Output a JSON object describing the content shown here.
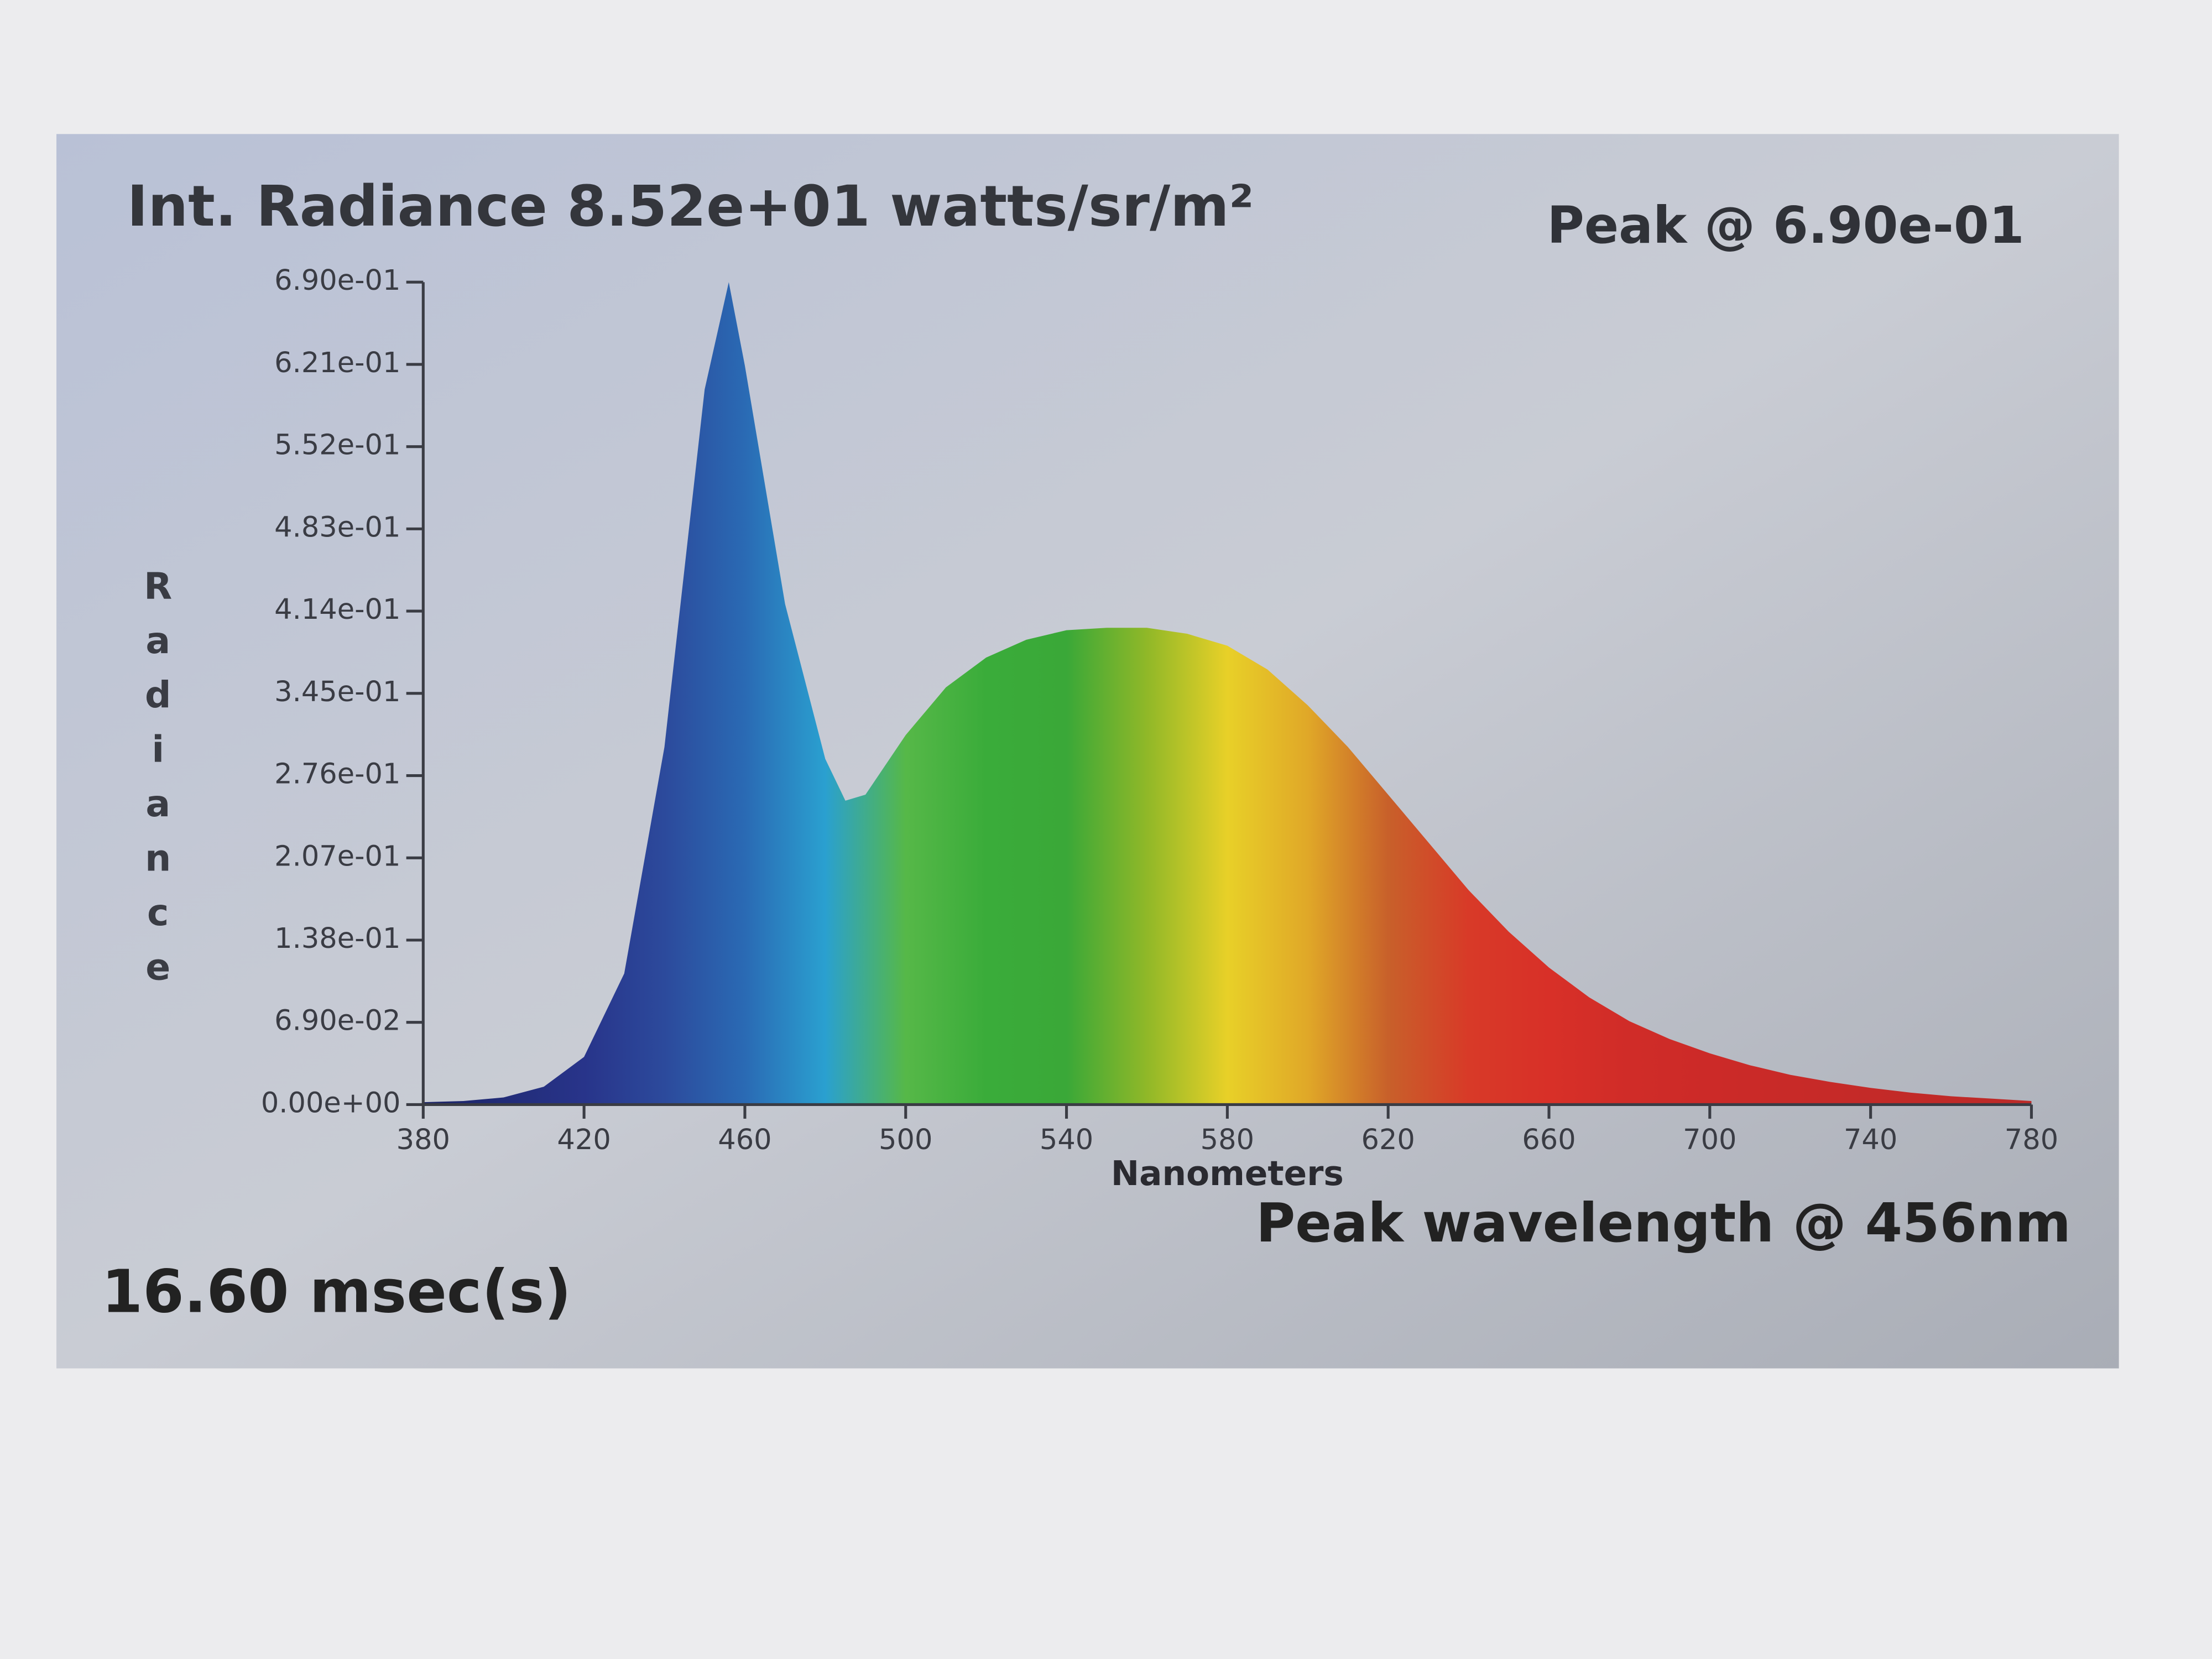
{
  "chart_data": {
    "type": "area",
    "title": "Int. Radiance 8.52e+01 watts/sr/m²",
    "annotations": [
      "Peak @ 6.90e-01",
      "Peak wavelength @ 456nm",
      "16.60 msec(s)"
    ],
    "x_label": "Nanometers",
    "y_label": "Radiance",
    "x": [
      380,
      390,
      400,
      410,
      420,
      430,
      440,
      450,
      456,
      460,
      470,
      480,
      485,
      490,
      500,
      510,
      520,
      530,
      540,
      550,
      560,
      570,
      580,
      590,
      600,
      610,
      620,
      630,
      640,
      650,
      660,
      670,
      680,
      690,
      700,
      710,
      720,
      730,
      740,
      750,
      760,
      770,
      780
    ],
    "values": [
      0.002,
      0.003,
      0.006,
      0.015,
      0.04,
      0.11,
      0.3,
      0.6,
      0.69,
      0.62,
      0.42,
      0.29,
      0.255,
      0.26,
      0.31,
      0.35,
      0.375,
      0.39,
      0.398,
      0.4,
      0.4,
      0.395,
      0.385,
      0.365,
      0.335,
      0.3,
      0.26,
      0.22,
      0.18,
      0.145,
      0.115,
      0.09,
      0.07,
      0.055,
      0.043,
      0.033,
      0.025,
      0.019,
      0.014,
      0.01,
      0.007,
      0.005,
      0.003
    ],
    "colors": [
      "#1c2466",
      "#222c78",
      "#28348a",
      "#2c4a9c",
      "#2a6ab4",
      "#2aa0d0",
      "#56b848",
      "#3aac3a",
      "#3aa838",
      "#90b828",
      "#e8d028",
      "#e0a828",
      "#c8602a",
      "#d83a28",
      "#d83028",
      "#d02c28",
      "#cc2a28",
      "#c82a28",
      "#c42a28",
      "#c02a28",
      "#bc2a28"
    ],
    "xlim": [
      380,
      780
    ],
    "xticks": [
      380,
      420,
      460,
      500,
      540,
      580,
      620,
      660,
      700,
      740,
      780
    ],
    "ylim": [
      0,
      0.69
    ],
    "yticks": [
      {
        "value": 0,
        "label": "0.00e+00"
      },
      {
        "value": 0.069,
        "label": "6.90e-02"
      },
      {
        "value": 0.138,
        "label": "1.38e-01"
      },
      {
        "value": 0.207,
        "label": "2.07e-01"
      },
      {
        "value": 0.276,
        "label": "2.76e-01"
      },
      {
        "value": 0.345,
        "label": "3.45e-01"
      },
      {
        "value": 0.414,
        "label": "4.14e-01"
      },
      {
        "value": 0.483,
        "label": "4.83e-01"
      },
      {
        "value": 0.552,
        "label": "5.52e-01"
      },
      {
        "value": 0.621,
        "label": "6.21e-01"
      },
      {
        "value": 0.69,
        "label": "6.90e-01"
      }
    ]
  }
}
